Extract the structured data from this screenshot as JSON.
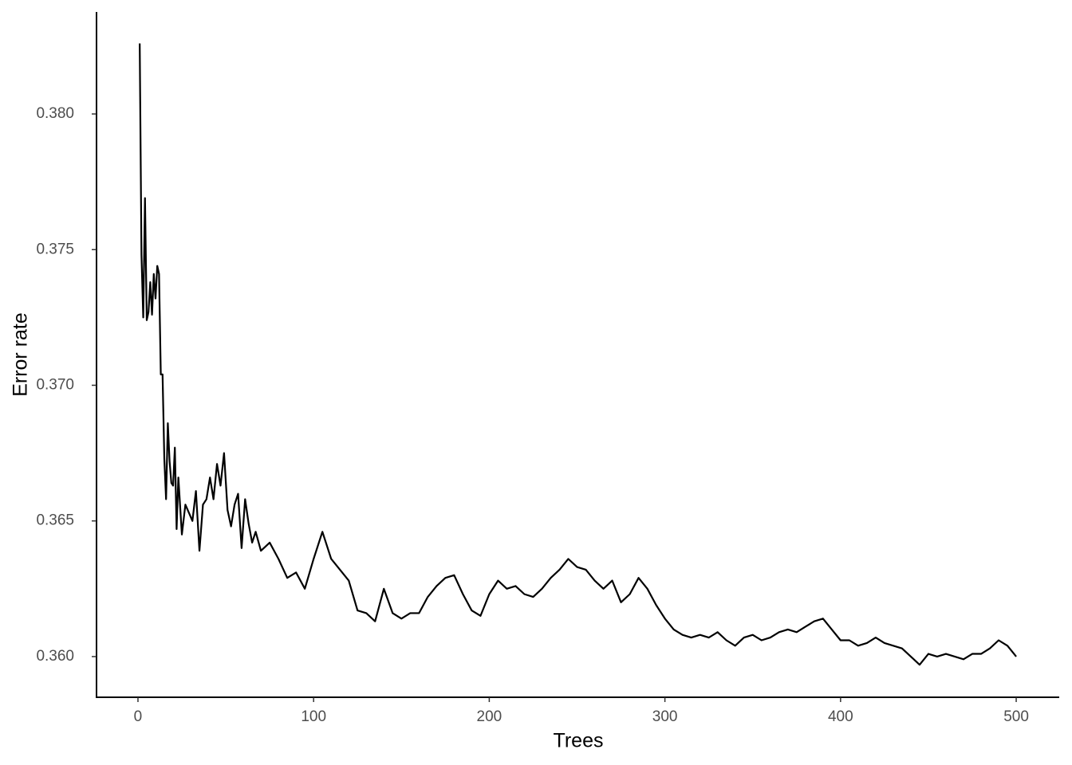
{
  "chart_data": {
    "type": "line",
    "x_label": "Trees",
    "y_label": "Error rate",
    "xlim": [
      -23.6,
      524.5
    ],
    "xticks": [
      0,
      100,
      200,
      300,
      400,
      500
    ],
    "ylim": [
      0.3585,
      0.38376
    ],
    "yticks": [
      {
        "value": 0.36,
        "label": "0.360"
      },
      {
        "value": 0.365,
        "label": "0.365"
      },
      {
        "value": 0.37,
        "label": "0.370"
      },
      {
        "value": 0.375,
        "label": "0.375"
      },
      {
        "value": 0.38,
        "label": "0.380"
      }
    ],
    "grid": false,
    "series": [
      {
        "color": "#000000",
        "x": [
          1,
          2,
          3,
          4,
          5,
          6,
          7,
          8,
          9,
          10,
          11,
          12,
          13,
          14,
          15,
          16,
          17,
          18,
          19,
          20,
          21,
          22,
          23,
          25,
          27,
          29,
          31,
          33,
          35,
          37,
          39,
          41,
          43,
          45,
          47,
          49,
          51,
          53,
          55,
          57,
          59,
          61,
          63,
          65,
          67,
          70,
          75,
          80,
          85,
          90,
          95,
          100,
          105,
          110,
          115,
          120,
          125,
          130,
          135,
          140,
          145,
          150,
          155,
          160,
          165,
          170,
          175,
          180,
          185,
          190,
          195,
          200,
          205,
          210,
          215,
          220,
          225,
          230,
          235,
          240,
          245,
          250,
          255,
          260,
          265,
          270,
          275,
          280,
          285,
          290,
          295,
          300,
          305,
          310,
          315,
          320,
          325,
          330,
          335,
          340,
          345,
          350,
          355,
          360,
          365,
          370,
          375,
          380,
          385,
          390,
          395,
          400,
          405,
          410,
          415,
          420,
          425,
          430,
          435,
          440,
          445,
          450,
          455,
          460,
          465,
          470,
          475,
          480,
          485,
          490,
          495,
          500
        ],
        "values": [
          0.3826,
          0.3748,
          0.3725,
          0.3769,
          0.3724,
          0.3727,
          0.3738,
          0.3726,
          0.3741,
          0.3732,
          0.3744,
          0.3741,
          0.3704,
          0.3704,
          0.3673,
          0.3658,
          0.3686,
          0.3672,
          0.3664,
          0.3663,
          0.3677,
          0.3647,
          0.3666,
          0.3645,
          0.3656,
          0.3653,
          0.365,
          0.3661,
          0.3639,
          0.3656,
          0.3658,
          0.3666,
          0.3658,
          0.3671,
          0.3663,
          0.3675,
          0.3654,
          0.3648,
          0.3656,
          0.366,
          0.364,
          0.3658,
          0.3649,
          0.3642,
          0.3646,
          0.3639,
          0.3642,
          0.3636,
          0.3629,
          0.3631,
          0.3625,
          0.3636,
          0.3646,
          0.3636,
          0.3632,
          0.3628,
          0.3617,
          0.3616,
          0.3613,
          0.3625,
          0.3616,
          0.3614,
          0.3616,
          0.3616,
          0.3622,
          0.3626,
          0.3629,
          0.363,
          0.3623,
          0.3617,
          0.3615,
          0.3623,
          0.3628,
          0.3625,
          0.3626,
          0.3623,
          0.3622,
          0.3625,
          0.3629,
          0.3632,
          0.3636,
          0.3633,
          0.3632,
          0.3628,
          0.3625,
          0.3628,
          0.362,
          0.3623,
          0.3629,
          0.3625,
          0.3619,
          0.3614,
          0.361,
          0.3608,
          0.3607,
          0.3608,
          0.3607,
          0.3609,
          0.3606,
          0.3604,
          0.3607,
          0.3608,
          0.3606,
          0.3607,
          0.3609,
          0.361,
          0.3609,
          0.3611,
          0.3613,
          0.3614,
          0.361,
          0.3606,
          0.3606,
          0.3604,
          0.3605,
          0.3607,
          0.3605,
          0.3604,
          0.3603,
          0.36,
          0.3597,
          0.3601,
          0.36,
          0.3601,
          0.36,
          0.3599,
          0.3601,
          0.3601,
          0.3603,
          0.3606,
          0.3604,
          0.36
        ]
      }
    ]
  }
}
